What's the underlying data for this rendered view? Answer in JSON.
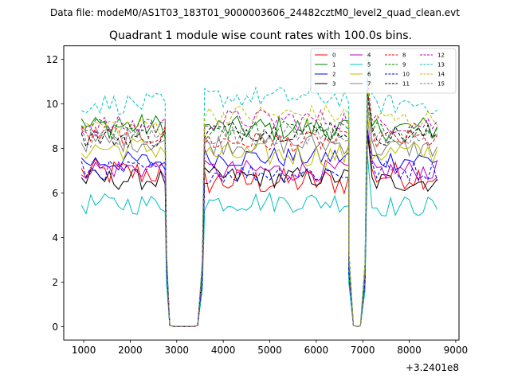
{
  "chart_data": {
    "type": "line",
    "suptitle": "Data file: modeM0/AS1T03_183T01_9000003606_24482cztM0_level2_quad_clean.evt",
    "title": "Quadrant 1 module wise count rates with 100.0s bins.",
    "xlabel": "",
    "ylabel": "",
    "x_offset_label": "+3.2401e8",
    "xlim": [
      570,
      9070
    ],
    "ylim": [
      -0.6,
      12.6
    ],
    "x_ticks": [
      1000,
      2000,
      3000,
      4000,
      5000,
      6000,
      7000,
      8000,
      9000
    ],
    "x_tick_labels": [
      "1000",
      "2000",
      "3000",
      "4000",
      "5000",
      "6000",
      "7000",
      "8000",
      "9000"
    ],
    "y_ticks": [
      0,
      2,
      4,
      6,
      8,
      10,
      12
    ],
    "y_tick_labels": [
      "0",
      "2",
      "4",
      "6",
      "8",
      "10",
      "12"
    ],
    "grid": false,
    "legend_position": "top-right",
    "gaps": [
      {
        "rise_x": 2780,
        "low": [
          2850,
          3450
        ],
        "high_x": 3550
      },
      {
        "rise_x": 6700,
        "low": [
          6800,
          6950
        ],
        "high_x": 7050
      }
    ],
    "segments": [
      [
        950,
        2750
      ],
      [
        3600,
        6700
      ],
      [
        7100,
        8650
      ]
    ],
    "series": [
      {
        "name": "0",
        "color": "#ff0000",
        "dash": "solid",
        "base": [
          6.9,
          6.5,
          6.8
        ],
        "var": 0.4
      },
      {
        "name": "1",
        "color": "#008000",
        "dash": "solid",
        "base": [
          9.0,
          8.9,
          8.9
        ],
        "var": 0.35
      },
      {
        "name": "2",
        "color": "#0000ff",
        "dash": "solid",
        "base": [
          7.4,
          7.6,
          7.5
        ],
        "var": 0.3
      },
      {
        "name": "3",
        "color": "#000000",
        "dash": "solid",
        "base": [
          6.6,
          6.7,
          6.5
        ],
        "var": 0.3
      },
      {
        "name": "4",
        "color": "#bf00bf",
        "dash": "solid",
        "base": [
          7.1,
          7.0,
          7.0
        ],
        "var": 0.3
      },
      {
        "name": "5",
        "color": "#00bfbf",
        "dash": "solid",
        "base": [
          5.5,
          5.6,
          5.4
        ],
        "var": 0.3
      },
      {
        "name": "6",
        "color": "#bfbf00",
        "dash": "solid",
        "base": [
          8.0,
          7.7,
          7.8
        ],
        "var": 0.35
      },
      {
        "name": "7",
        "color": "#808080",
        "dash": "solid",
        "base": [
          8.3,
          8.2,
          8.0
        ],
        "var": 0.3
      },
      {
        "name": "8",
        "color": "#ff0000",
        "dash": "dashed",
        "base": [
          8.6,
          8.3,
          8.4
        ],
        "var": 0.3
      },
      {
        "name": "9",
        "color": "#008000",
        "dash": "dashed",
        "base": [
          8.9,
          8.8,
          8.7
        ],
        "var": 0.3
      },
      {
        "name": "10",
        "color": "#0000ff",
        "dash": "dashed",
        "base": [
          7.0,
          6.9,
          7.0
        ],
        "var": 0.3
      },
      {
        "name": "11",
        "color": "#000000",
        "dash": "dashed",
        "base": [
          8.5,
          8.8,
          8.6
        ],
        "var": 0.3
      },
      {
        "name": "12",
        "color": "#bf00bf",
        "dash": "dashed",
        "base": [
          9.0,
          9.3,
          9.1
        ],
        "var": 0.3
      },
      {
        "name": "13",
        "color": "#00bfbf",
        "dash": "dashed",
        "base": [
          10.0,
          10.3,
          10.0
        ],
        "var": 0.3
      },
      {
        "name": "14",
        "color": "#bfbf00",
        "dash": "dashed",
        "base": [
          9.0,
          9.5,
          9.3
        ],
        "var": 0.3
      },
      {
        "name": "15",
        "color": "#808080",
        "dash": "dashed",
        "base": [
          8.5,
          8.6,
          8.4
        ],
        "var": 0.3
      }
    ]
  }
}
